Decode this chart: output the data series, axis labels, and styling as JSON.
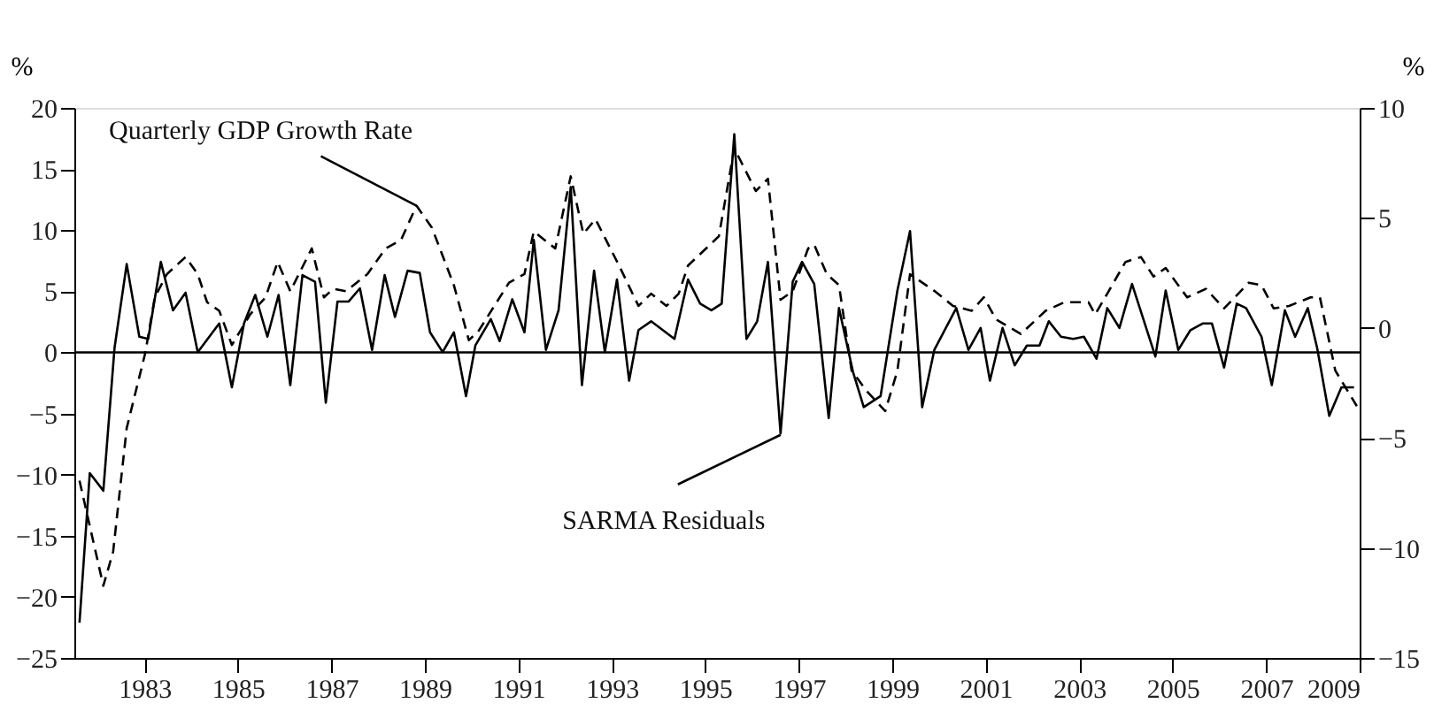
{
  "chart_data": {
    "type": "line",
    "ylabel": "%",
    "y2label": "%",
    "xlim": [
      1981.5,
      2009
    ],
    "xticks": [
      1983,
      1985,
      1987,
      1989,
      1991,
      1993,
      1995,
      1997,
      1999,
      2001,
      2003,
      2005,
      2007,
      2009
    ],
    "ylim": [
      -25,
      20
    ],
    "yticks": [
      -25,
      -20,
      -15,
      -10,
      -5,
      0,
      5,
      10,
      15,
      20
    ],
    "y2lim": [
      -15,
      10
    ],
    "y2ticks": [
      -15,
      -10,
      -5,
      0,
      5,
      10
    ],
    "grid": false,
    "marker": "none",
    "ref_lines": [
      {
        "axis": "y",
        "value": 0,
        "color": "#000000"
      }
    ],
    "series": [
      {
        "color": "#000000",
        "line_style": "dashed",
        "axis": "y",
        "x": [
          1981.61,
          1982.12,
          1982.33,
          1982.62,
          1983.02,
          1983.22,
          1983.48,
          1983.88,
          1984.14,
          1984.34,
          1984.6,
          1984.87,
          1985.26,
          1985.59,
          1985.85,
          1986.12,
          1986.58,
          1986.84,
          1987.04,
          1987.31,
          1987.77,
          1988.16,
          1988.49,
          1988.82,
          1989.15,
          1989.62,
          1989.94,
          1990.14,
          1990.8,
          1991.13,
          1991.33,
          1991.79,
          1992.12,
          1992.39,
          1992.65,
          1993.18,
          1993.57,
          1993.84,
          1994.17,
          1994.43,
          1994.63,
          1995.29,
          1995.62,
          1996.08,
          1996.34,
          1996.61,
          1996.87,
          1997.2,
          1997.33,
          1997.6,
          1997.86,
          1998.13,
          1998.46,
          1998.85,
          1999.11,
          1999.38,
          1999.91,
          2000.3,
          2000.7,
          2000.96,
          2001.22,
          2001.75,
          2002.28,
          2002.68,
          2003.2,
          2003.34,
          2003.6,
          2003.99,
          2004.32,
          2004.59,
          2004.85,
          2005.31,
          2005.71,
          2006.1,
          2006.63,
          2006.9,
          2007.16,
          2007.49,
          2007.95,
          2008.15,
          2008.48,
          2008.75,
          2008.94
        ],
        "values": [
          -10.5,
          -19.1,
          -16.3,
          -6.2,
          0,
          4.5,
          6.4,
          7.8,
          6.4,
          4.1,
          3.4,
          0.6,
          3.1,
          4.5,
          7.4,
          5.0,
          8.5,
          4.5,
          5.2,
          5.0,
          6.4,
          8.5,
          9.2,
          12.0,
          10.2,
          5.5,
          1.0,
          1.7,
          5.7,
          6.4,
          9.9,
          8.5,
          14.4,
          9.7,
          10.9,
          6.9,
          3.8,
          4.8,
          3.8,
          4.8,
          7.1,
          9.5,
          16.7,
          13.2,
          14.2,
          4.3,
          5.0,
          8.5,
          8.8,
          6.4,
          5.5,
          -1.5,
          -3.2,
          -4.8,
          -1.5,
          6.4,
          5.0,
          3.8,
          3.4,
          4.5,
          2.7,
          1.5,
          3.4,
          4.1,
          4.1,
          3.1,
          4.8,
          7.4,
          7.8,
          6.2,
          6.9,
          4.5,
          5.2,
          3.6,
          5.7,
          5.5,
          3.6,
          3.8,
          4.5,
          4.5,
          -1.5,
          -3.2,
          -4.4
        ]
      },
      {
        "color": "#000000",
        "line_style": "solid",
        "axis": "y2",
        "x": [
          1981.61,
          1981.83,
          1982.12,
          1982.36,
          1982.62,
          1982.89,
          1983.08,
          1983.35,
          1983.61,
          1983.88,
          1984.14,
          1984.6,
          1984.87,
          1985.13,
          1985.37,
          1985.63,
          1985.87,
          1986.12,
          1986.38,
          1986.65,
          1986.88,
          1987.13,
          1987.37,
          1987.61,
          1987.87,
          1988.14,
          1988.36,
          1988.63,
          1988.89,
          1989.11,
          1989.38,
          1989.62,
          1989.88,
          1990.08,
          1990.41,
          1990.6,
          1990.87,
          1991.13,
          1991.33,
          1991.59,
          1991.86,
          1992.12,
          1992.36,
          1992.62,
          1992.85,
          1993.11,
          1993.37,
          1993.57,
          1993.84,
          1994.34,
          1994.63,
          1994.89,
          1995.13,
          1995.35,
          1995.62,
          1995.88,
          1996.11,
          1996.34,
          1996.61,
          1996.87,
          1997.07,
          1997.33,
          1997.64,
          1997.86,
          1998.16,
          1998.39,
          1998.75,
          1999.11,
          1999.38,
          1999.64,
          1999.9,
          2000.37,
          2000.63,
          2000.89,
          2001.09,
          2001.36,
          2001.62,
          2001.88,
          2002.15,
          2002.35,
          2002.61,
          2002.87,
          2003.1,
          2003.37,
          2003.6,
          2003.86,
          2004.13,
          2004.63,
          2004.85,
          2005.12,
          2005.38,
          2005.64,
          2005.84,
          2006.1,
          2006.37,
          2006.57,
          2006.9,
          2007.12,
          2007.4,
          2007.62,
          2007.89,
          2008.09,
          2008.35,
          2008.61,
          2008.88
        ],
        "values": [
          -13.4,
          -6.6,
          -7.4,
          -0.9,
          2.9,
          -0.4,
          -0.5,
          3.0,
          0.8,
          1.6,
          -1.1,
          0.2,
          -2.7,
          0.2,
          1.5,
          -0.4,
          1.5,
          -2.6,
          2.4,
          2.1,
          -3.4,
          1.2,
          1.2,
          1.8,
          -1.0,
          2.4,
          0.5,
          2.6,
          2.5,
          -0.2,
          -1.1,
          -0.2,
          -3.1,
          -0.8,
          0.4,
          -0.6,
          1.3,
          -0.2,
          4.0,
          -1.0,
          0.8,
          6.4,
          -2.6,
          2.6,
          -1.1,
          2.2,
          -2.4,
          -0.1,
          0.3,
          -0.5,
          2.2,
          1.1,
          0.8,
          1.1,
          8.8,
          -0.5,
          0.3,
          3.0,
          -4.8,
          2.1,
          3.0,
          2.0,
          -4.1,
          0.9,
          -2.0,
          -3.6,
          -3.1,
          1.7,
          4.4,
          -3.6,
          -1.0,
          0.9,
          -1.0,
          0.0,
          -2.4,
          0.0,
          -1.7,
          -0.8,
          -0.8,
          0.3,
          -0.4,
          -0.5,
          -0.4,
          -1.4,
          0.9,
          0.0,
          2.0,
          -1.3,
          1.7,
          -1.0,
          -0.1,
          0.2,
          0.2,
          -1.8,
          1.1,
          0.9,
          -0.4,
          -2.6,
          0.8,
          -0.4,
          0.9,
          -0.9,
          -4.0,
          -2.7,
          -2.7
        ]
      }
    ],
    "annotations": [
      {
        "text": "Quarterly GDP Growth Rate",
        "x": 1988.82,
        "y": 12.0
      },
      {
        "text": "SARMA Residuals",
        "x": 1996.61,
        "y": -6.75
      }
    ]
  }
}
